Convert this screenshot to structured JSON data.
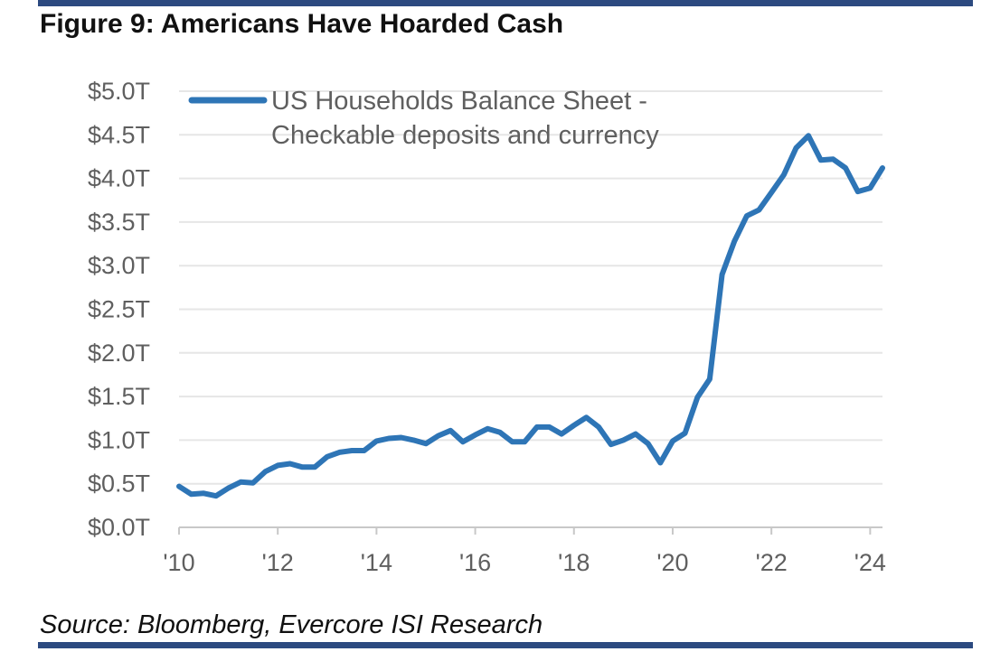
{
  "figure": {
    "title": "Figure 9: Americans Have Hoarded Cash",
    "source": "Source: Bloomberg, Evercore ISI Research"
  },
  "colors": {
    "rule": "#2c4a80",
    "line": "#2e75b6",
    "grid": "#e6e6e6",
    "axis": "#c8c8c8",
    "tick_text": "#5f5f5f"
  },
  "chart_data": {
    "type": "line",
    "title": "Figure 9: Americans Have Hoarded Cash",
    "xlabel": "",
    "ylabel": "",
    "grid": true,
    "legend_position": "top-left",
    "xlim": [
      2010,
      2024.25
    ],
    "ylim": [
      0,
      5.0
    ],
    "x_ticks": [
      2010,
      2012,
      2014,
      2016,
      2018,
      2020,
      2022,
      2024
    ],
    "x_tick_labels": [
      "'10",
      "'12",
      "'14",
      "'16",
      "'18",
      "'20",
      "'22",
      "'24"
    ],
    "y_ticks": [
      0,
      0.5,
      1.0,
      1.5,
      2.0,
      2.5,
      3.0,
      3.5,
      4.0,
      4.5,
      5.0
    ],
    "y_tick_labels": [
      "$0.0T",
      "$0.5T",
      "$1.0T",
      "$1.5T",
      "$2.0T",
      "$2.5T",
      "$3.0T",
      "$3.5T",
      "$4.0T",
      "$4.5T",
      "$5.0T"
    ],
    "series": [
      {
        "name": "US Households Balance Sheet - Checkable deposits and currency",
        "legend_lines": [
          "US Households Balance Sheet -",
          "Checkable deposits and currency"
        ],
        "x": [
          2010.0,
          2010.25,
          2010.5,
          2010.75,
          2011.0,
          2011.25,
          2011.5,
          2011.75,
          2012.0,
          2012.25,
          2012.5,
          2012.75,
          2013.0,
          2013.25,
          2013.5,
          2013.75,
          2014.0,
          2014.25,
          2014.5,
          2014.75,
          2015.0,
          2015.25,
          2015.5,
          2015.75,
          2016.0,
          2016.25,
          2016.5,
          2016.75,
          2017.0,
          2017.25,
          2017.5,
          2017.75,
          2018.0,
          2018.25,
          2018.5,
          2018.75,
          2019.0,
          2019.25,
          2019.5,
          2019.75,
          2020.0,
          2020.25,
          2020.5,
          2020.75,
          2021.0,
          2021.25,
          2021.5,
          2021.75,
          2022.0,
          2022.25,
          2022.5,
          2022.75,
          2023.0,
          2023.25,
          2023.5,
          2023.75,
          2024.0,
          2024.25
        ],
        "values": [
          0.47,
          0.38,
          0.39,
          0.36,
          0.45,
          0.52,
          0.51,
          0.64,
          0.71,
          0.73,
          0.69,
          0.69,
          0.81,
          0.86,
          0.88,
          0.88,
          0.99,
          1.02,
          1.03,
          1.0,
          0.96,
          1.05,
          1.11,
          0.98,
          1.06,
          1.13,
          1.09,
          0.98,
          0.98,
          1.15,
          1.15,
          1.07,
          1.17,
          1.26,
          1.15,
          0.95,
          1.0,
          1.07,
          0.96,
          0.74,
          0.99,
          1.08,
          1.49,
          1.7,
          2.9,
          3.28,
          3.57,
          3.64,
          3.84,
          4.04,
          4.35,
          4.49,
          4.21,
          4.22,
          4.12,
          3.85,
          3.89,
          4.12
        ]
      }
    ]
  }
}
